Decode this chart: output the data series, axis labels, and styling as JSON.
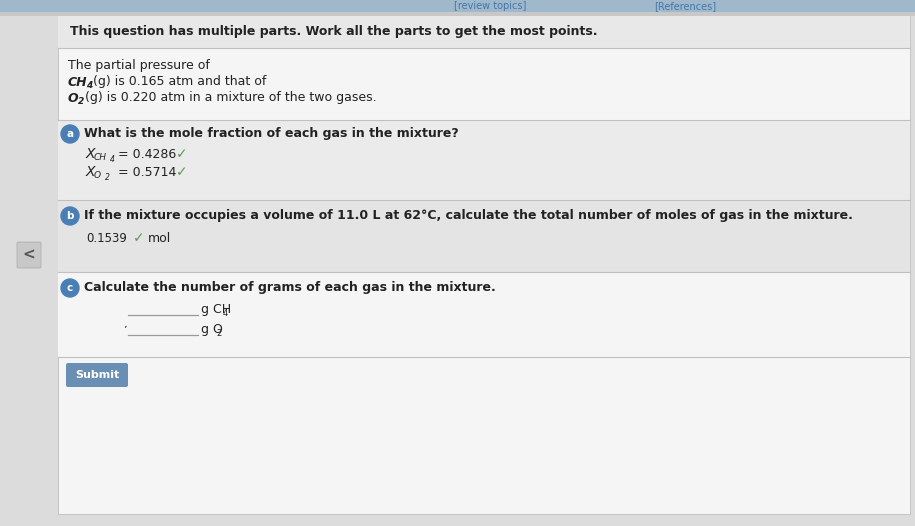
{
  "bg_color": "#dcdcdc",
  "white_color": "#f5f5f5",
  "panel_white": "#ffffff",
  "dark_gray": "#222222",
  "medium_gray": "#555555",
  "light_gray": "#cccccc",
  "separator_color": "#c0c0c0",
  "blue_label_color": "#4a7fb5",
  "green_check_color": "#5a9a5a",
  "submit_btn_color": "#6a8fb5",
  "top_bar_color": "#a0b8cc",
  "top_text_color": "#4477aa",
  "left_arrow_bg": "#c8c8c8",
  "left_arrow_color": "#555555",
  "header_text": "This question has multiple parts. Work all the parts to get the most points.",
  "intro_line1": "The partial pressure of",
  "ch4_formula": "CH",
  "ch4_sub": "4",
  "ch4_suffix": "(g) is 0.165 atm and that of",
  "o2_formula": "O",
  "o2_sub": "2",
  "o2_suffix": "(g) is 0.220 atm in a mixture of the two gases.",
  "part_a_question": "What is the mole fraction of each gas in the mixture?",
  "xch4_value": "= 0.4286",
  "xo2_value": "= 0.5714",
  "part_b_question": "If the mixture occupies a volume of 11.0 L at 62°C, calculate the total number of moles of gas in the mixture.",
  "part_b_value": "0.1539",
  "part_b_unit": "mol",
  "part_c_question": "Calculate the number of grams of each gas in the mixture.",
  "part_c_label1": "g CH",
  "part_c_sub1": "4",
  "part_c_label2": "g O",
  "part_c_sub2": "2",
  "submit_text": "Submit",
  "nav_label1": "[review topics]",
  "nav_label2": "[References]",
  "fig_width": 9.15,
  "fig_height": 5.26,
  "dpi": 100
}
